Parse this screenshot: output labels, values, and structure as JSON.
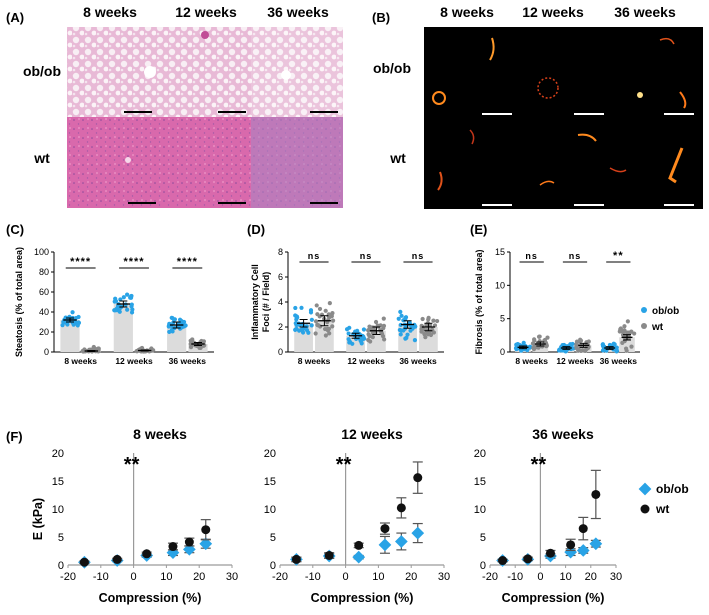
{
  "panels": {
    "A": "(A)",
    "B": "(B)",
    "C": "(C)",
    "D": "(D)",
    "E": "(E)",
    "F": "(F)"
  },
  "histology": {
    "columns": [
      "8 weeks",
      "12 weeks",
      "36 weeks"
    ],
    "rows": [
      "ob/ob",
      "wt"
    ]
  },
  "colors": {
    "ob": "#29a3e6",
    "wt": "#8a8a8a",
    "wt_f": "#111111",
    "bar": "#dcdcdc"
  },
  "chart_data": [
    {
      "panel": "C",
      "type": "scatter",
      "ylabel": "Steatosis (% of total area)",
      "categories": [
        "8 weeks",
        "12 weeks",
        "36 weeks"
      ],
      "ylim": [
        0,
        100
      ],
      "yticks": [
        0,
        20,
        40,
        60,
        80,
        100
      ],
      "series": [
        {
          "means": [
            32,
            48,
            27
          ],
          "sem": [
            2,
            3,
            3
          ]
        },
        {
          "means": [
            1,
            1.5,
            8
          ],
          "sem": [
            0.5,
            0.5,
            1.5
          ]
        }
      ],
      "significance": [
        "****",
        "****",
        "****"
      ]
    },
    {
      "panel": "D",
      "type": "scatter",
      "ylabel": "Inflammatory Cell Foci (# / Field)",
      "categories": [
        "8 weeks",
        "12 weeks",
        "36 weeks"
      ],
      "ylim": [
        0,
        8
      ],
      "yticks": [
        0,
        2,
        4,
        6,
        8
      ],
      "series": [
        {
          "means": [
            2.3,
            1.3,
            2.2
          ],
          "sem": [
            0.3,
            0.2,
            0.3
          ]
        },
        {
          "means": [
            2.5,
            1.7,
            2.0
          ],
          "sem": [
            0.4,
            0.3,
            0.3
          ]
        }
      ],
      "significance": [
        "ns",
        "ns",
        "ns"
      ]
    },
    {
      "panel": "E",
      "type": "scatter",
      "ylabel": "Fibrosis (% of total area)",
      "categories": [
        "8 weeks",
        "12 weeks",
        "36 weeks"
      ],
      "ylim": [
        0,
        15
      ],
      "yticks": [
        0,
        5,
        10,
        15
      ],
      "series": [
        {
          "name": "ob/ob",
          "means": [
            0.7,
            0.6,
            0.6
          ],
          "sem": [
            0.2,
            0.2,
            0.2
          ]
        },
        {
          "name": "wt",
          "means": [
            1.2,
            1.0,
            2.2
          ],
          "sem": [
            0.3,
            0.3,
            0.4
          ]
        }
      ],
      "significance": [
        "ns",
        "ns",
        "**"
      ]
    },
    {
      "panel": "F1",
      "type": "scatter",
      "title": "8 weeks",
      "xlabel": "Compression (%)",
      "ylabel": "E (kPa)",
      "xlim": [
        -20,
        30
      ],
      "ylim": [
        0,
        20
      ],
      "xticks": [
        -20,
        -10,
        0,
        10,
        20,
        30
      ],
      "yticks": [
        0,
        5,
        10,
        15,
        20
      ],
      "annotation": "**",
      "series": [
        {
          "name": "ob/ob",
          "x": [
            -15,
            -5,
            4,
            12,
            17,
            22
          ],
          "y": [
            0.5,
            0.8,
            1.7,
            2.2,
            2.8,
            3.8
          ],
          "err": [
            0.2,
            0.2,
            0.3,
            0.5,
            0.6,
            0.8
          ]
        },
        {
          "name": "wt",
          "x": [
            -15,
            -5,
            4,
            12,
            17,
            22
          ],
          "y": [
            0.5,
            1.0,
            2.0,
            3.3,
            4.1,
            6.3
          ],
          "err": [
            0.2,
            0.2,
            0.3,
            0.6,
            0.7,
            1.8
          ]
        }
      ]
    },
    {
      "panel": "F2",
      "type": "scatter",
      "title": "12 weeks",
      "xlabel": "Compression (%)",
      "ylabel": "",
      "xlim": [
        -20,
        30
      ],
      "ylim": [
        0,
        20
      ],
      "xticks": [
        -20,
        -10,
        0,
        10,
        20,
        30
      ],
      "yticks": [
        0,
        5,
        10,
        15,
        20
      ],
      "annotation": "**",
      "series": [
        {
          "name": "ob/ob",
          "x": [
            -15,
            -5,
            4,
            12,
            17,
            22
          ],
          "y": [
            1.0,
            1.6,
            1.4,
            3.6,
            4.2,
            5.7
          ],
          "err": [
            0.4,
            0.4,
            0.3,
            1.5,
            1.5,
            1.7
          ]
        },
        {
          "name": "wt",
          "x": [
            -15,
            -5,
            4,
            12,
            17,
            22
          ],
          "y": [
            1.0,
            1.7,
            3.5,
            6.5,
            10.2,
            15.6
          ],
          "err": [
            0.4,
            0.5,
            0.4,
            1.0,
            1.8,
            2.8
          ]
        }
      ]
    },
    {
      "panel": "F3",
      "type": "scatter",
      "title": "36 weeks",
      "xlabel": "Compression (%)",
      "ylabel": "",
      "xlim": [
        -20,
        30
      ],
      "ylim": [
        0,
        20
      ],
      "xticks": [
        -20,
        -10,
        0,
        10,
        20,
        30
      ],
      "yticks": [
        0,
        5,
        10,
        15,
        20
      ],
      "annotation": "**",
      "series": [
        {
          "name": "ob/ob",
          "x": [
            -15,
            -5,
            4,
            12,
            17,
            22
          ],
          "y": [
            0.8,
            1.0,
            1.6,
            2.3,
            2.6,
            3.8
          ],
          "err": [
            0.2,
            0.2,
            0.4,
            0.6,
            0.5,
            0.6
          ]
        },
        {
          "name": "wt",
          "x": [
            -15,
            -5,
            4,
            12,
            17,
            22
          ],
          "y": [
            0.8,
            1.1,
            2.1,
            3.6,
            6.5,
            12.6
          ],
          "err": [
            0.2,
            0.3,
            0.5,
            1.0,
            2.0,
            4.3
          ]
        }
      ]
    }
  ]
}
